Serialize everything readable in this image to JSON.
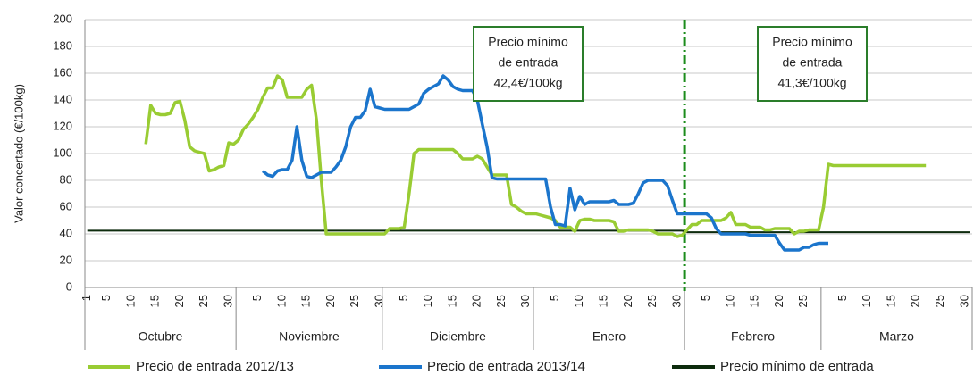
{
  "chart_data": {
    "type": "line",
    "y_label": "Valor concertado (€/100kg)",
    "ylim": [
      0,
      200
    ],
    "yticks": [
      0,
      20,
      40,
      60,
      80,
      100,
      120,
      140,
      160,
      180,
      200
    ],
    "grid": true,
    "months": [
      {
        "name": "Octubre",
        "days": [
          1,
          null,
          null,
          null,
          5,
          null,
          null,
          null,
          null,
          10,
          null,
          null,
          null,
          null,
          15,
          null,
          null,
          null,
          null,
          20,
          null,
          null,
          null,
          null,
          25,
          null,
          null,
          null,
          null,
          30,
          null
        ]
      },
      {
        "name": "Noviembre",
        "days": [
          null,
          null,
          null,
          null,
          5,
          null,
          null,
          null,
          null,
          10,
          null,
          null,
          null,
          null,
          15,
          null,
          null,
          null,
          null,
          20,
          null,
          null,
          null,
          null,
          25,
          null,
          null,
          null,
          null,
          30
        ]
      },
      {
        "name": "Diciembre",
        "days": [
          null,
          null,
          null,
          null,
          5,
          null,
          null,
          null,
          null,
          10,
          null,
          null,
          null,
          null,
          15,
          null,
          null,
          null,
          null,
          20,
          null,
          null,
          null,
          null,
          25,
          null,
          null,
          null,
          null,
          30,
          null
        ]
      },
      {
        "name": "Enero",
        "days": [
          null,
          null,
          null,
          null,
          5,
          null,
          null,
          null,
          null,
          10,
          null,
          null,
          null,
          null,
          15,
          null,
          null,
          null,
          null,
          20,
          null,
          null,
          null,
          null,
          25,
          null,
          null,
          null,
          null,
          30,
          null
        ]
      },
      {
        "name": "Febrero",
        "days": [
          null,
          null,
          null,
          null,
          5,
          null,
          null,
          null,
          null,
          10,
          null,
          null,
          null,
          null,
          15,
          null,
          null,
          null,
          null,
          20,
          null,
          null,
          null,
          null,
          25,
          null,
          null,
          null
        ]
      },
      {
        "name": "Marzo",
        "days": [
          null,
          null,
          null,
          null,
          5,
          null,
          null,
          null,
          null,
          10,
          null,
          null,
          null,
          null,
          15,
          null,
          null,
          null,
          null,
          20,
          null,
          null,
          null,
          null,
          25,
          null,
          null,
          null,
          null,
          30,
          null
        ]
      }
    ],
    "series": [
      {
        "name": "Precio de entrada 2012/13",
        "color": "#99cc33",
        "values": [
          null,
          null,
          null,
          null,
          null,
          null,
          null,
          null,
          null,
          null,
          null,
          null,
          107,
          136,
          130,
          129,
          129,
          130,
          138,
          139,
          125,
          105,
          102,
          101,
          100,
          87,
          88,
          90,
          91,
          108,
          107,
          110,
          118,
          122,
          127,
          133,
          142,
          149,
          149,
          158,
          155,
          142,
          142,
          142,
          142,
          148,
          151,
          125,
          80,
          40,
          40,
          40,
          40,
          40,
          40,
          40,
          40,
          40,
          40,
          40,
          40,
          40,
          44,
          44,
          44,
          45,
          70,
          100,
          103,
          103,
          103,
          103,
          103,
          103,
          103,
          103,
          100,
          96,
          96,
          96,
          98,
          96,
          90,
          84,
          84,
          84,
          84,
          62,
          60,
          57,
          55,
          55,
          55,
          54,
          53,
          52,
          50,
          45,
          45,
          45,
          42,
          50,
          51,
          51,
          50,
          50,
          50,
          50,
          49,
          42,
          42,
          43,
          43,
          43,
          43,
          43,
          42,
          40,
          40,
          40,
          40,
          38,
          39,
          43,
          47,
          47,
          50,
          50,
          50,
          50,
          50,
          52,
          56,
          47,
          47,
          47,
          45,
          45,
          45,
          43,
          43,
          44,
          44,
          44,
          44,
          40,
          42,
          42,
          43,
          43,
          43,
          60,
          92,
          91,
          91,
          91,
          91,
          91,
          91,
          91,
          91,
          91,
          91,
          91,
          91,
          91,
          91,
          91,
          91,
          91,
          91,
          91,
          91,
          null,
          null,
          null,
          null,
          null,
          null,
          null,
          null,
          null
        ]
      },
      {
        "name": "Precio de entrada 2013/14",
        "color": "#1b75cc",
        "values": [
          null,
          null,
          null,
          null,
          null,
          null,
          null,
          null,
          null,
          null,
          null,
          null,
          null,
          null,
          null,
          null,
          null,
          null,
          null,
          null,
          null,
          null,
          null,
          null,
          null,
          null,
          null,
          null,
          null,
          null,
          null,
          null,
          null,
          null,
          null,
          null,
          87,
          84,
          83,
          87,
          88,
          88,
          95,
          120,
          95,
          83,
          82,
          84,
          86,
          86,
          86,
          90,
          95,
          105,
          120,
          127,
          127,
          132,
          148,
          135,
          134,
          133,
          133,
          133,
          133,
          133,
          133,
          135,
          137,
          145,
          148,
          150,
          152,
          158,
          155,
          150,
          148,
          147,
          147,
          147,
          140,
          122,
          105,
          82,
          81,
          81,
          81,
          81,
          81,
          81,
          81,
          81,
          81,
          81,
          81,
          60,
          47,
          47,
          46,
          74,
          58,
          68,
          62,
          64,
          64,
          64,
          64,
          64,
          65,
          62,
          62,
          62,
          63,
          70,
          78,
          80,
          80,
          80,
          80,
          76,
          65,
          55,
          55,
          55,
          55,
          55,
          55,
          55,
          52,
          44,
          40,
          40,
          40,
          40,
          40,
          40,
          39,
          39,
          39,
          39,
          39,
          39,
          33,
          28,
          28,
          28,
          28,
          30,
          30,
          32,
          33,
          33,
          33,
          null,
          null,
          null,
          null,
          null,
          null,
          null,
          null,
          null,
          null,
          null,
          null,
          null,
          null,
          null,
          null,
          null,
          null,
          null,
          null,
          null,
          null,
          null,
          null,
          null,
          null,
          null,
          null,
          null
        ]
      },
      {
        "name": "Precio mínimo de entrada",
        "color": "#0d2b0d",
        "values": [
          42.4,
          42.4,
          42.4,
          42.4,
          42.4,
          42.4,
          42.4,
          42.4,
          42.4,
          42.4,
          42.4,
          42.4,
          42.4,
          42.4,
          42.4,
          42.4,
          42.4,
          42.4,
          42.4,
          42.4,
          42.4,
          42.4,
          42.4,
          42.4,
          42.4,
          42.4,
          42.4,
          42.4,
          42.4,
          42.4,
          42.4,
          42.4,
          42.4,
          42.4,
          42.4,
          42.4,
          42.4,
          42.4,
          42.4,
          42.4,
          42.4,
          42.4,
          42.4,
          42.4,
          42.4,
          42.4,
          42.4,
          42.4,
          42.4,
          42.4,
          42.4,
          42.4,
          42.4,
          42.4,
          42.4,
          42.4,
          42.4,
          42.4,
          42.4,
          42.4,
          42.4,
          42.4,
          42.4,
          42.4,
          42.4,
          42.4,
          42.4,
          42.4,
          42.4,
          42.4,
          42.4,
          42.4,
          42.4,
          42.4,
          42.4,
          42.4,
          42.4,
          42.4,
          42.4,
          42.4,
          42.4,
          42.4,
          42.4,
          42.4,
          42.4,
          42.4,
          42.4,
          42.4,
          42.4,
          42.4,
          42.4,
          42.4,
          42.4,
          42.4,
          42.4,
          42.4,
          42.4,
          42.4,
          42.4,
          42.4,
          42.4,
          42.4,
          42.4,
          42.4,
          42.4,
          42.4,
          42.4,
          42.4,
          42.4,
          42.4,
          42.4,
          42.4,
          42.4,
          42.4,
          42.4,
          42.4,
          42.4,
          42.4,
          42.4,
          42.4,
          42.4,
          42.4,
          42.4,
          41.3,
          41.3,
          41.3,
          41.3,
          41.3,
          41.3,
          41.3,
          41.3,
          41.3,
          41.3,
          41.3,
          41.3,
          41.3,
          41.3,
          41.3,
          41.3,
          41.3,
          41.3,
          41.3,
          41.3,
          41.3,
          41.3,
          41.3,
          41.3,
          41.3,
          41.3,
          41.3,
          41.3,
          41.3,
          41.3,
          41.3,
          41.3,
          41.3,
          41.3,
          41.3,
          41.3,
          41.3,
          41.3,
          41.3,
          41.3,
          41.3,
          41.3,
          41.3,
          41.3,
          41.3,
          41.3,
          41.3,
          41.3,
          41.3,
          41.3,
          41.3,
          41.3,
          41.3,
          41.3,
          41.3,
          41.3,
          41.3,
          41.3,
          41.3
        ]
      }
    ],
    "annotations": [
      {
        "lines": [
          "Precio mínimo",
          "de entrada",
          "42,4€/100kg"
        ]
      },
      {
        "lines": [
          "Precio mínimo",
          "de entrada",
          "41,3€/100kg"
        ]
      }
    ]
  }
}
